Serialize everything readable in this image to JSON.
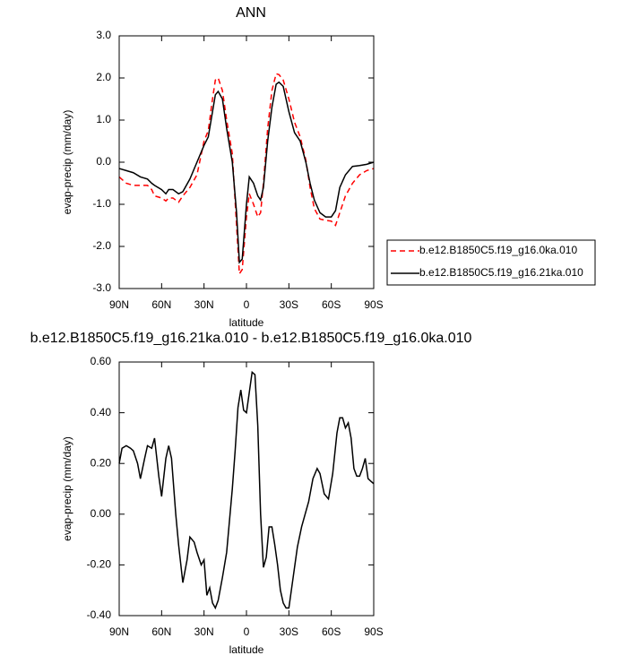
{
  "chart_data": [
    {
      "type": "line",
      "title": "ANN",
      "x_label": "latitude",
      "y_label": "evap-precip (mm/day)",
      "x": [
        90,
        85,
        80,
        75,
        70,
        67,
        65,
        60,
        57,
        55,
        52,
        48,
        45,
        40,
        35,
        30,
        27,
        24,
        22,
        20,
        17,
        14,
        10,
        7,
        5,
        3,
        0,
        -2,
        -5,
        -8,
        -10,
        -12,
        -15,
        -18,
        -21,
        -23,
        -26,
        -30,
        -34,
        -38,
        -42,
        -45,
        -48,
        -52,
        -56,
        -60,
        -63,
        -66,
        -70,
        -75,
        -80,
        -85,
        -90
      ],
      "series": [
        {
          "name": "b.e12.B1850C5.f19_g16.0ka.010",
          "color": "#ff0000",
          "linestyle": "dashed",
          "values": [
            -0.35,
            -0.5,
            -0.55,
            -0.55,
            -0.55,
            -0.65,
            -0.8,
            -0.85,
            -0.92,
            -0.85,
            -0.85,
            -0.95,
            -0.8,
            -0.6,
            -0.3,
            0.5,
            0.75,
            1.5,
            1.95,
            2.0,
            1.7,
            1.0,
            0.2,
            -1.5,
            -2.65,
            -2.55,
            -1.3,
            -0.75,
            -1.0,
            -1.3,
            -1.2,
            -0.5,
            0.8,
            1.7,
            2.1,
            2.08,
            1.95,
            1.5,
            0.95,
            0.6,
            0.05,
            -0.6,
            -1.1,
            -1.35,
            -1.38,
            -1.4,
            -1.5,
            -1.2,
            -0.8,
            -0.5,
            -0.3,
            -0.2,
            -0.15
          ]
        },
        {
          "name": "b.e12.B1850C5.f19_g16.21ka.010",
          "color": "#000000",
          "linestyle": "solid",
          "values": [
            -0.15,
            -0.2,
            -0.25,
            -0.35,
            -0.4,
            -0.5,
            -0.55,
            -0.65,
            -0.75,
            -0.65,
            -0.65,
            -0.75,
            -0.7,
            -0.4,
            0.0,
            0.4,
            0.6,
            1.2,
            1.6,
            1.68,
            1.5,
            0.8,
            0.0,
            -1.2,
            -2.38,
            -2.3,
            -1.0,
            -0.35,
            -0.5,
            -0.8,
            -0.9,
            -0.6,
            0.5,
            1.3,
            1.85,
            1.9,
            1.8,
            1.2,
            0.7,
            0.5,
            0.0,
            -0.5,
            -0.9,
            -1.2,
            -1.3,
            -1.3,
            -1.15,
            -0.6,
            -0.3,
            -0.1,
            -0.08,
            -0.05,
            0.0
          ]
        }
      ],
      "xlim": [
        90,
        -90
      ],
      "xticks": [
        {
          "value": 90,
          "label": "90N"
        },
        {
          "value": 60,
          "label": "60N"
        },
        {
          "value": 30,
          "label": "30N"
        },
        0,
        {
          "value": -30,
          "label": "30S"
        },
        {
          "value": -60,
          "label": "60S"
        },
        {
          "value": -90,
          "label": "90S"
        }
      ],
      "ylim": [
        -3,
        3
      ],
      "yticks": [
        {
          "value": -3,
          "label": "-3.0"
        },
        {
          "value": -2,
          "label": "-2.0"
        },
        {
          "value": -1,
          "label": "-1.0"
        },
        {
          "value": 0,
          "label": "0.0"
        },
        {
          "value": 1,
          "label": "1.0"
        },
        {
          "value": 2,
          "label": "2.0"
        },
        {
          "value": 3,
          "label": "3.0"
        }
      ],
      "legend_position": "right"
    },
    {
      "type": "line",
      "title": "b.e12.B1850C5.f19_g16.21ka.010 - b.e12.B1850C5.f19_g16.0ka.010",
      "x_label": "latitude",
      "y_label": "evap-precip (mm/day)",
      "x": [
        90,
        88,
        85,
        82,
        80,
        77,
        75,
        72,
        70,
        67,
        65,
        62,
        60,
        57,
        55,
        53,
        50,
        48,
        45,
        42,
        40,
        37,
        35,
        32,
        30,
        28,
        26,
        24,
        22,
        20,
        17,
        14,
        10,
        8,
        6,
        4,
        2,
        0,
        -2,
        -4,
        -6,
        -8,
        -10,
        -12,
        -14,
        -16,
        -18,
        -20,
        -22,
        -24,
        -26,
        -28,
        -30,
        -33,
        -36,
        -39,
        -42,
        -44,
        -47,
        -50,
        -52,
        -55,
        -58,
        -61,
        -64,
        -66,
        -68,
        -70,
        -72,
        -74,
        -76,
        -78,
        -80,
        -82,
        -84,
        -86,
        -88,
        -90
      ],
      "series": [
        {
          "color": "#000000",
          "linestyle": "solid",
          "values": [
            0.2,
            0.26,
            0.27,
            0.26,
            0.25,
            0.2,
            0.14,
            0.22,
            0.27,
            0.26,
            0.3,
            0.15,
            0.07,
            0.22,
            0.27,
            0.22,
            0.0,
            -0.12,
            -0.27,
            -0.18,
            -0.09,
            -0.11,
            -0.15,
            -0.2,
            -0.18,
            -0.32,
            -0.29,
            -0.35,
            -0.37,
            -0.34,
            -0.25,
            -0.15,
            0.1,
            0.25,
            0.42,
            0.49,
            0.41,
            0.4,
            0.48,
            0.56,
            0.55,
            0.35,
            0.0,
            -0.21,
            -0.17,
            -0.05,
            -0.05,
            -0.12,
            -0.2,
            -0.3,
            -0.35,
            -0.37,
            -0.37,
            -0.25,
            -0.13,
            -0.05,
            0.01,
            0.05,
            0.14,
            0.18,
            0.16,
            0.08,
            0.06,
            0.16,
            0.32,
            0.38,
            0.38,
            0.34,
            0.36,
            0.3,
            0.18,
            0.15,
            0.15,
            0.18,
            0.22,
            0.14,
            0.13,
            0.12
          ]
        }
      ],
      "xlim": [
        90,
        -90
      ],
      "xticks": [
        {
          "value": 90,
          "label": "90N"
        },
        {
          "value": 60,
          "label": "60N"
        },
        {
          "value": 30,
          "label": "30N"
        },
        0,
        {
          "value": -30,
          "label": "30S"
        },
        {
          "value": -60,
          "label": "60S"
        },
        {
          "value": -90,
          "label": "90S"
        }
      ],
      "ylim": [
        -0.4,
        0.6
      ],
      "yticks": [
        {
          "value": -0.4,
          "label": "-0.40"
        },
        {
          "value": -0.2,
          "label": "-0.20"
        },
        {
          "value": 0,
          "label": "0.00"
        },
        {
          "value": 0.2,
          "label": "0.20"
        },
        {
          "value": 0.4,
          "label": "0.40"
        },
        {
          "value": 0.6,
          "label": "0.60"
        }
      ]
    }
  ]
}
